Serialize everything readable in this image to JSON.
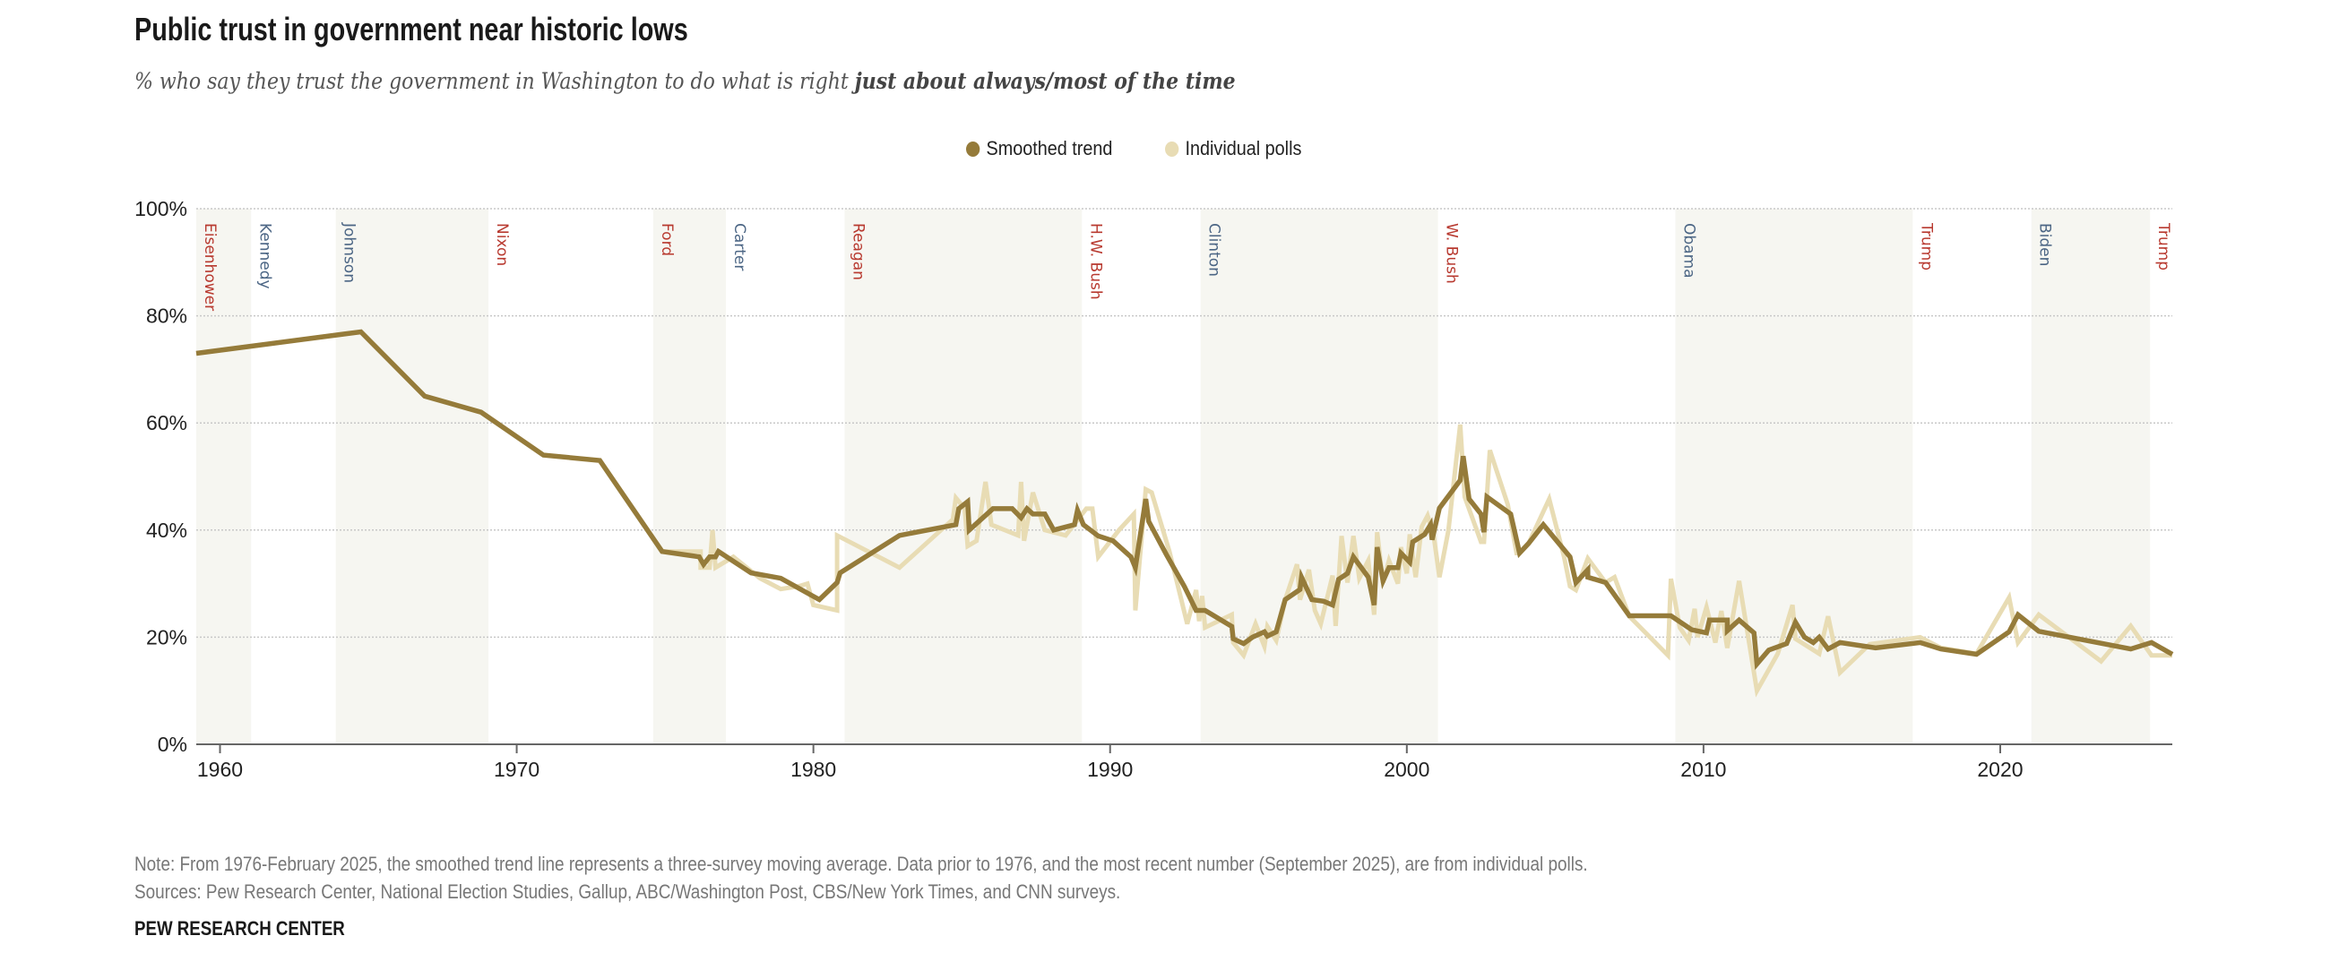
{
  "header": {
    "title": "Public trust in government near historic lows",
    "subtitle_plain": "% who say they trust the government in Washington to do what is right ",
    "subtitle_bold": "just about always/most of the time"
  },
  "legend": [
    {
      "label": "Smoothed trend",
      "color": "#957b3a"
    },
    {
      "label": "Individual polls",
      "color": "#e8dcb4"
    }
  ],
  "colors": {
    "republican": "#b8392f",
    "democrat": "#4b6584",
    "band": "#f6f6f1",
    "smoothed": "#957b3a",
    "polls": "#e8dcb4"
  },
  "footer": {
    "note": "Note: From 1976-February 2025, the smoothed trend line represents a three-survey moving average. Data prior to 1976, and the most recent number (September 2025), are from individual polls.",
    "sources": "Sources: Pew Research Center, National Election Studies, Gallup, ABC/Washington Post, CBS/New York Times, and CNN surveys.",
    "brand": "PEW RESEARCH CENTER"
  },
  "chart_data": {
    "type": "line",
    "title": "Public trust in government near historic lows",
    "xlim": [
      1959.2,
      2025.8
    ],
    "ylim": [
      0,
      100
    ],
    "x_ticks": [
      1960,
      1970,
      1980,
      1990,
      2000,
      2010,
      2020
    ],
    "y_ticks": [
      0,
      20,
      40,
      60,
      80,
      100
    ],
    "y_tick_labels": [
      "0%",
      "20%",
      "40%",
      "60%",
      "80%",
      "100%"
    ],
    "grid": "horizontal dotted",
    "legend_position": "top-center",
    "presidents": [
      {
        "name": "Eisenhower",
        "party": "R",
        "start": 1959.2,
        "end": 1961.05,
        "shaded": true
      },
      {
        "name": "Kennedy",
        "party": "D",
        "start": 1961.05,
        "end": 1963.9,
        "shaded": false
      },
      {
        "name": "Johnson",
        "party": "D",
        "start": 1963.9,
        "end": 1969.05,
        "shaded": true
      },
      {
        "name": "Nixon",
        "party": "R",
        "start": 1969.05,
        "end": 1974.6,
        "shaded": false
      },
      {
        "name": "Ford",
        "party": "R",
        "start": 1974.6,
        "end": 1977.05,
        "shaded": true
      },
      {
        "name": "Carter",
        "party": "D",
        "start": 1977.05,
        "end": 1981.05,
        "shaded": false
      },
      {
        "name": "Reagan",
        "party": "R",
        "start": 1981.05,
        "end": 1989.05,
        "shaded": true
      },
      {
        "name": "H.W. Bush",
        "party": "R",
        "start": 1989.05,
        "end": 1993.05,
        "shaded": false
      },
      {
        "name": "Clinton",
        "party": "D",
        "start": 1993.05,
        "end": 2001.05,
        "shaded": true
      },
      {
        "name": "W. Bush",
        "party": "R",
        "start": 2001.05,
        "end": 2009.05,
        "shaded": false
      },
      {
        "name": "Obama",
        "party": "D",
        "start": 2009.05,
        "end": 2017.05,
        "shaded": true
      },
      {
        "name": "Trump",
        "party": "R",
        "start": 2017.05,
        "end": 2021.05,
        "shaded": false
      },
      {
        "name": "Biden",
        "party": "D",
        "start": 2021.05,
        "end": 2025.05,
        "shaded": true
      },
      {
        "name": "Trump",
        "party": "R",
        "start": 2025.05,
        "end": 2025.8,
        "shaded": false
      }
    ],
    "series": [
      {
        "name": "Individual polls",
        "points": [
          [
            1958.9,
            73
          ],
          [
            1964.75,
            77
          ],
          [
            1966.9,
            65
          ],
          [
            1968.8,
            62
          ],
          [
            1970.9,
            54
          ],
          [
            1972.8,
            53
          ],
          [
            1974.9,
            36
          ],
          [
            1976.2,
            36
          ],
          [
            1976.2,
            33
          ],
          [
            1976.5,
            33
          ],
          [
            1976.6,
            40
          ],
          [
            1976.7,
            33
          ],
          [
            1977.3,
            35
          ],
          [
            1978.2,
            31
          ],
          [
            1978.9,
            29
          ],
          [
            1979.5,
            29.5
          ],
          [
            1979.8,
            30
          ],
          [
            1980.0,
            26
          ],
          [
            1980.8,
            25
          ],
          [
            1980.8,
            39
          ],
          [
            1982.9,
            33
          ],
          [
            1984.7,
            42
          ],
          [
            1984.8,
            46
          ],
          [
            1985.1,
            44
          ],
          [
            1985.2,
            37
          ],
          [
            1985.5,
            38
          ],
          [
            1985.8,
            49
          ],
          [
            1986.0,
            41
          ],
          [
            1986.9,
            39
          ],
          [
            1987.0,
            49
          ],
          [
            1987.1,
            38
          ],
          [
            1987.4,
            47
          ],
          [
            1987.8,
            40
          ],
          [
            1988.5,
            39
          ],
          [
            1989.2,
            44
          ],
          [
            1989.4,
            44
          ],
          [
            1989.6,
            35
          ],
          [
            1990.3,
            40
          ],
          [
            1990.8,
            43
          ],
          [
            1990.85,
            25
          ],
          [
            1991.2,
            47.6
          ],
          [
            1991.4,
            47
          ],
          [
            1992.0,
            36
          ],
          [
            1992.6,
            22.5
          ],
          [
            1992.9,
            28.8
          ],
          [
            1993.0,
            23
          ],
          [
            1993.1,
            27.7
          ],
          [
            1993.2,
            21.8
          ],
          [
            1994.1,
            24.2
          ],
          [
            1994.15,
            19
          ],
          [
            1994.5,
            16.6
          ],
          [
            1994.9,
            22.5
          ],
          [
            1995.2,
            18.3
          ],
          [
            1995.3,
            22
          ],
          [
            1995.6,
            19.4
          ],
          [
            1995.9,
            27
          ],
          [
            1996.3,
            33.6
          ],
          [
            1996.4,
            27
          ],
          [
            1996.7,
            32.6
          ],
          [
            1996.9,
            25
          ],
          [
            1997.1,
            22.5
          ],
          [
            1997.5,
            31.5
          ],
          [
            1997.6,
            22.1
          ],
          [
            1997.8,
            38.9
          ],
          [
            1998.0,
            30.2
          ],
          [
            1998.2,
            38.9
          ],
          [
            1998.4,
            31
          ],
          [
            1998.7,
            34.3
          ],
          [
            1998.9,
            24.2
          ],
          [
            1999.0,
            39.6
          ],
          [
            1999.2,
            30.2
          ],
          [
            1999.4,
            34.3
          ],
          [
            1999.7,
            30
          ],
          [
            1999.8,
            36.8
          ],
          [
            2000.0,
            31.9
          ],
          [
            2000.1,
            39.2
          ],
          [
            2000.3,
            31.2
          ],
          [
            2000.5,
            40.6
          ],
          [
            2000.7,
            42.7
          ],
          [
            2000.9,
            39.2
          ],
          [
            2001.1,
            31.2
          ],
          [
            2001.4,
            39.9
          ],
          [
            2001.8,
            59.7
          ],
          [
            2001.95,
            46.2
          ],
          [
            2002.5,
            37.8
          ],
          [
            2002.6,
            37.8
          ],
          [
            2002.8,
            54.9
          ],
          [
            2003.4,
            44.8
          ],
          [
            2003.7,
            35.7
          ],
          [
            2003.8,
            35.7
          ],
          [
            2004.1,
            37.5
          ],
          [
            2004.8,
            45.8
          ],
          [
            2005.3,
            35
          ],
          [
            2005.5,
            29.5
          ],
          [
            2005.7,
            28.8
          ],
          [
            2006.1,
            34.7
          ],
          [
            2006.7,
            30.2
          ],
          [
            2007.0,
            31.2
          ],
          [
            2007.5,
            23.9
          ],
          [
            2008.8,
            16.6
          ],
          [
            2008.9,
            30.9
          ],
          [
            2009.2,
            21.8
          ],
          [
            2009.5,
            19.4
          ],
          [
            2009.7,
            25.3
          ],
          [
            2009.8,
            20
          ],
          [
            2010.1,
            25.6
          ],
          [
            2010.4,
            19
          ],
          [
            2010.6,
            24.9
          ],
          [
            2010.8,
            18
          ],
          [
            2011.2,
            30.5
          ],
          [
            2011.8,
            10
          ],
          [
            2012.5,
            16.9
          ],
          [
            2013.0,
            26
          ],
          [
            2013.1,
            19.7
          ],
          [
            2013.9,
            16.9
          ],
          [
            2014.2,
            23.9
          ],
          [
            2014.6,
            13.4
          ],
          [
            2015.6,
            18.7
          ],
          [
            2017.3,
            20
          ],
          [
            2018.0,
            18
          ],
          [
            2019.2,
            16.9
          ],
          [
            2020.3,
            27.4
          ],
          [
            2020.6,
            19
          ],
          [
            2021.3,
            24.2
          ],
          [
            2023.4,
            15.5
          ],
          [
            2024.4,
            22.1
          ],
          [
            2025.1,
            16.6
          ],
          [
            2025.8,
            16.6
          ]
        ]
      },
      {
        "name": "Smoothed trend",
        "points": [
          [
            1958.9,
            73
          ],
          [
            1964.75,
            77
          ],
          [
            1966.9,
            65
          ],
          [
            1968.8,
            62
          ],
          [
            1970.9,
            54
          ],
          [
            1972.8,
            53
          ],
          [
            1974.9,
            36
          ],
          [
            1976.15,
            35
          ],
          [
            1976.3,
            33.6
          ],
          [
            1976.5,
            35
          ],
          [
            1976.7,
            35
          ],
          [
            1976.8,
            36
          ],
          [
            1977.9,
            32
          ],
          [
            1978.9,
            31
          ],
          [
            1980.2,
            27
          ],
          [
            1980.8,
            30.2
          ],
          [
            1980.9,
            32
          ],
          [
            1982.9,
            39
          ],
          [
            1984.8,
            41
          ],
          [
            1984.9,
            44
          ],
          [
            1985.2,
            45.3
          ],
          [
            1985.25,
            40
          ],
          [
            1986.05,
            44
          ],
          [
            1986.7,
            44
          ],
          [
            1987.0,
            42.3
          ],
          [
            1987.2,
            44
          ],
          [
            1987.4,
            43
          ],
          [
            1987.8,
            43
          ],
          [
            1988.1,
            40
          ],
          [
            1988.8,
            41
          ],
          [
            1988.9,
            43.7
          ],
          [
            1989.1,
            41
          ],
          [
            1989.6,
            38.9
          ],
          [
            1990.1,
            38
          ],
          [
            1990.7,
            35
          ],
          [
            1990.85,
            33
          ],
          [
            1991.2,
            45.8
          ],
          [
            1991.3,
            41.6
          ],
          [
            1991.9,
            35.4
          ],
          [
            1992.5,
            29.5
          ],
          [
            1992.9,
            25
          ],
          [
            1993.2,
            25
          ],
          [
            1994.1,
            22
          ],
          [
            1994.15,
            19.7
          ],
          [
            1994.5,
            18.8
          ],
          [
            1994.8,
            20
          ],
          [
            1995.2,
            21
          ],
          [
            1995.3,
            20.2
          ],
          [
            1995.6,
            21
          ],
          [
            1995.9,
            27
          ],
          [
            1996.4,
            28.9
          ],
          [
            1996.45,
            31.2
          ],
          [
            1996.8,
            27
          ],
          [
            1997.2,
            26.7
          ],
          [
            1997.5,
            26
          ],
          [
            1997.7,
            30.8
          ],
          [
            1998.0,
            31.9
          ],
          [
            1998.2,
            35
          ],
          [
            1998.7,
            31.2
          ],
          [
            1998.9,
            26
          ],
          [
            1999.0,
            36.8
          ],
          [
            1999.2,
            30.5
          ],
          [
            1999.4,
            33
          ],
          [
            1999.7,
            33
          ],
          [
            1999.8,
            35.7
          ],
          [
            2000.1,
            34
          ],
          [
            2000.2,
            37.8
          ],
          [
            2000.6,
            39.2
          ],
          [
            2000.8,
            41
          ],
          [
            2000.85,
            38.2
          ],
          [
            2001.1,
            44.1
          ],
          [
            2001.8,
            49.3
          ],
          [
            2001.9,
            53.8
          ],
          [
            2002.1,
            45.8
          ],
          [
            2002.5,
            43
          ],
          [
            2002.6,
            39.6
          ],
          [
            2002.7,
            46.2
          ],
          [
            2003.5,
            43
          ],
          [
            2003.8,
            35.7
          ],
          [
            2004.1,
            37.5
          ],
          [
            2004.6,
            41
          ],
          [
            2005.5,
            35
          ],
          [
            2005.7,
            30.2
          ],
          [
            2006.1,
            32.6
          ],
          [
            2006.1,
            31.2
          ],
          [
            2006.7,
            30.2
          ],
          [
            2007.0,
            27.9
          ],
          [
            2007.5,
            24
          ],
          [
            2008.9,
            24
          ],
          [
            2009.6,
            21.4
          ],
          [
            2010.1,
            20.8
          ],
          [
            2010.2,
            23.2
          ],
          [
            2010.8,
            23.2
          ],
          [
            2010.8,
            21.2
          ],
          [
            2011.2,
            23.2
          ],
          [
            2011.7,
            20.8
          ],
          [
            2011.8,
            15
          ],
          [
            2012.2,
            17.6
          ],
          [
            2012.8,
            18.8
          ],
          [
            2013.1,
            22.8
          ],
          [
            2013.4,
            20
          ],
          [
            2013.7,
            19
          ],
          [
            2013.9,
            20
          ],
          [
            2014.2,
            17.8
          ],
          [
            2014.6,
            19
          ],
          [
            2015.8,
            18
          ],
          [
            2017.3,
            19
          ],
          [
            2018.0,
            17.8
          ],
          [
            2019.2,
            16.8
          ],
          [
            2020.3,
            21
          ],
          [
            2020.6,
            24.2
          ],
          [
            2021.3,
            21.1
          ],
          [
            2024.4,
            17.8
          ],
          [
            2025.1,
            19
          ],
          [
            2025.8,
            16.8
          ]
        ]
      }
    ]
  }
}
